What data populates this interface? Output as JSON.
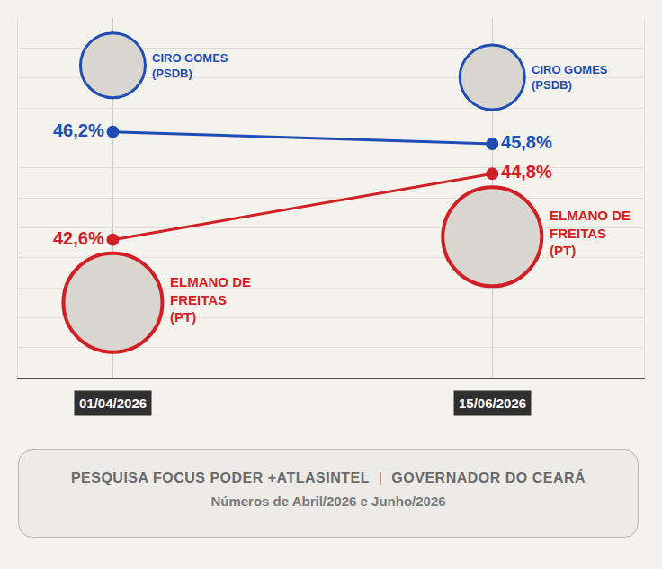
{
  "chart_data": {
    "type": "line",
    "title": "PESQUISA FOCUS PODER +ATLASINTEL | GOVERNADOR DO CEARÁ",
    "subtitle": "Números de Abril/2026 e Junho/2026",
    "categories": [
      "01/04/2026",
      "15/06/2026"
    ],
    "series": [
      {
        "name": "CIRO GOMES (PSDB)",
        "color": "#1f4db3",
        "values": [
          46.2,
          45.8
        ],
        "value_labels": [
          "46,2%",
          "45,8%"
        ]
      },
      {
        "name": "ELMANO DE FREITAS (PT)",
        "color": "#d11f26",
        "values": [
          42.6,
          44.8
        ],
        "value_labels": [
          "42,6%",
          "44,8%"
        ]
      }
    ],
    "ylim": [
      38,
      50
    ],
    "yticks": [
      38,
      39,
      40,
      41,
      42,
      43,
      44,
      45,
      46,
      47,
      48,
      49,
      50
    ],
    "grid": true,
    "data_labels": true,
    "tick_labels": "x",
    "marker": "circle",
    "line_style": "solid"
  }
}
